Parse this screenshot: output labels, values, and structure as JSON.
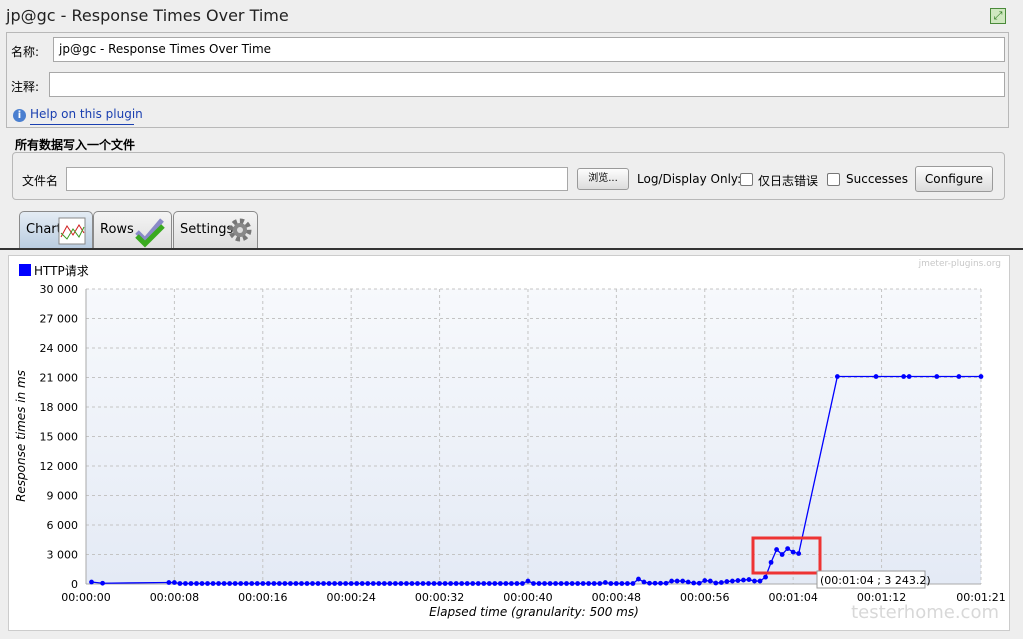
{
  "window": {
    "title": "jp@gc - Response Times Over Time",
    "maximize_icon": "maximize-icon"
  },
  "form": {
    "name_label": "名称:",
    "name_value": "jp@gc - Response Times Over Time",
    "comment_label": "注释:",
    "comment_value": "",
    "help_link": "Help on this plugin"
  },
  "file_group": {
    "title": "所有数据写入一个文件",
    "filename_label": "文件名",
    "filename_value": "",
    "browse_button": "浏览...",
    "log_display_label": "Log/Display Only:",
    "errors_only_label": "仅日志错误",
    "errors_only_checked": false,
    "successes_label": "Successes",
    "successes_checked": false,
    "configure_button": "Configure"
  },
  "tabs": [
    {
      "label": "Chart",
      "icon": "line-chart-icon",
      "active": true
    },
    {
      "label": "Rows",
      "icon": "checkmark-icon",
      "active": false
    },
    {
      "label": "Settings",
      "icon": "gear-icon",
      "active": false
    }
  ],
  "watermark": "jmeter-plugins.org",
  "site_watermark": "testerhome.com",
  "highlight_color": "#ee3333",
  "tooltip": "(00:01:04 ; 3 243.2)",
  "chart_data": {
    "type": "line",
    "legend": [
      {
        "name": "HTTP请求",
        "color": "#0000ff"
      }
    ],
    "legend_position": "top-left",
    "xlabel": "Elapsed time (granularity: 500 ms)",
    "ylabel": "Response times in ms",
    "xlim": [
      "00:00:00",
      "00:01:21"
    ],
    "ylim": [
      0,
      30000
    ],
    "grid": true,
    "x_ticks": [
      "00:00:00",
      "00:00:08",
      "00:00:16",
      "00:00:24",
      "00:00:32",
      "00:00:40",
      "00:00:48",
      "00:00:56",
      "00:01:04",
      "00:01:12",
      "00:01:21"
    ],
    "y_ticks": [
      "0",
      "3 000",
      "6 000",
      "9 000",
      "12 000",
      "15 000",
      "18 000",
      "21 000",
      "24 000",
      "27 000",
      "30 000"
    ],
    "series": [
      {
        "name": "HTTP请求",
        "points": [
          [
            "00:00:00.5",
            200
          ],
          [
            "00:00:01.5",
            80
          ],
          [
            "00:00:07.5",
            150
          ],
          [
            "00:00:08",
            150
          ],
          [
            "00:00:08.5",
            50
          ],
          [
            "00:00:09",
            50
          ],
          [
            "00:00:09.5",
            50
          ],
          [
            "00:00:10",
            50
          ],
          [
            "00:00:10.5",
            50
          ],
          [
            "00:00:11",
            50
          ],
          [
            "00:00:11.5",
            50
          ],
          [
            "00:00:12",
            50
          ],
          [
            "00:00:12.5",
            50
          ],
          [
            "00:00:13",
            50
          ],
          [
            "00:00:13.5",
            50
          ],
          [
            "00:00:14",
            50
          ],
          [
            "00:00:14.5",
            50
          ],
          [
            "00:00:15",
            50
          ],
          [
            "00:00:15.5",
            50
          ],
          [
            "00:00:16",
            50
          ],
          [
            "00:00:16.5",
            50
          ],
          [
            "00:00:17",
            50
          ],
          [
            "00:00:17.5",
            50
          ],
          [
            "00:00:18",
            50
          ],
          [
            "00:00:18.5",
            50
          ],
          [
            "00:00:19",
            50
          ],
          [
            "00:00:19.5",
            50
          ],
          [
            "00:00:20",
            50
          ],
          [
            "00:00:20.5",
            50
          ],
          [
            "00:00:21",
            50
          ],
          [
            "00:00:21.5",
            50
          ],
          [
            "00:00:22",
            50
          ],
          [
            "00:00:22.5",
            50
          ],
          [
            "00:00:23",
            50
          ],
          [
            "00:00:23.5",
            50
          ],
          [
            "00:00:24",
            50
          ],
          [
            "00:00:24.5",
            50
          ],
          [
            "00:00:25",
            50
          ],
          [
            "00:00:25.5",
            50
          ],
          [
            "00:00:26",
            50
          ],
          [
            "00:00:26.5",
            50
          ],
          [
            "00:00:27",
            50
          ],
          [
            "00:00:27.5",
            50
          ],
          [
            "00:00:28",
            50
          ],
          [
            "00:00:28.5",
            50
          ],
          [
            "00:00:29",
            50
          ],
          [
            "00:00:29.5",
            50
          ],
          [
            "00:00:30",
            50
          ],
          [
            "00:00:30.5",
            50
          ],
          [
            "00:00:31",
            50
          ],
          [
            "00:00:31.5",
            50
          ],
          [
            "00:00:32",
            50
          ],
          [
            "00:00:32.5",
            50
          ],
          [
            "00:00:33",
            50
          ],
          [
            "00:00:33.5",
            50
          ],
          [
            "00:00:34",
            50
          ],
          [
            "00:00:34.5",
            50
          ],
          [
            "00:00:35",
            50
          ],
          [
            "00:00:35.5",
            50
          ],
          [
            "00:00:36",
            50
          ],
          [
            "00:00:36.5",
            50
          ],
          [
            "00:00:37",
            50
          ],
          [
            "00:00:37.5",
            50
          ],
          [
            "00:00:38",
            50
          ],
          [
            "00:00:38.5",
            50
          ],
          [
            "00:00:39",
            50
          ],
          [
            "00:00:39.5",
            50
          ],
          [
            "00:00:40",
            300
          ],
          [
            "00:00:40.5",
            50
          ],
          [
            "00:00:41",
            50
          ],
          [
            "00:00:41.5",
            50
          ],
          [
            "00:00:42",
            50
          ],
          [
            "00:00:42.5",
            50
          ],
          [
            "00:00:43",
            50
          ],
          [
            "00:00:43.5",
            50
          ],
          [
            "00:00:44",
            50
          ],
          [
            "00:00:44.5",
            50
          ],
          [
            "00:00:45",
            50
          ],
          [
            "00:00:45.5",
            50
          ],
          [
            "00:00:46",
            50
          ],
          [
            "00:00:46.5",
            50
          ],
          [
            "00:00:47",
            150
          ],
          [
            "00:00:47.5",
            50
          ],
          [
            "00:00:48",
            50
          ],
          [
            "00:00:48.5",
            50
          ],
          [
            "00:00:49",
            50
          ],
          [
            "00:00:49.5",
            50
          ],
          [
            "00:00:50",
            500
          ],
          [
            "00:00:50.5",
            200
          ],
          [
            "00:00:51",
            80
          ],
          [
            "00:00:51.5",
            80
          ],
          [
            "00:00:52",
            80
          ],
          [
            "00:00:52.5",
            80
          ],
          [
            "00:00:53",
            300
          ],
          [
            "00:00:53.5",
            300
          ],
          [
            "00:00:54",
            300
          ],
          [
            "00:00:54.5",
            200
          ],
          [
            "00:00:55",
            100
          ],
          [
            "00:00:55.5",
            80
          ],
          [
            "00:00:56",
            350
          ],
          [
            "00:00:56.5",
            300
          ],
          [
            "00:00:57",
            100
          ],
          [
            "00:00:57.5",
            150
          ],
          [
            "00:00:58",
            250
          ],
          [
            "00:00:58.5",
            300
          ],
          [
            "00:00:59",
            350
          ],
          [
            "00:00:59.5",
            400
          ],
          [
            "00:01:00",
            450
          ],
          [
            "00:01:00.5",
            300
          ],
          [
            "00:01:01",
            300
          ],
          [
            "00:01:01.5",
            700
          ],
          [
            "00:01:02",
            2200
          ],
          [
            "00:01:02.5",
            3500
          ],
          [
            "00:01:03",
            3000
          ],
          [
            "00:01:03.5",
            3600
          ],
          [
            "00:01:04",
            3243.2
          ],
          [
            "00:01:04.5",
            3100
          ],
          [
            "00:01:08",
            21100
          ],
          [
            "00:01:11.5",
            21100
          ],
          [
            "00:01:14",
            21100
          ],
          [
            "00:01:14.5",
            21100
          ],
          [
            "00:01:17",
            21100
          ],
          [
            "00:01:19",
            21100
          ],
          [
            "00:01:21",
            21100
          ]
        ]
      }
    ]
  }
}
